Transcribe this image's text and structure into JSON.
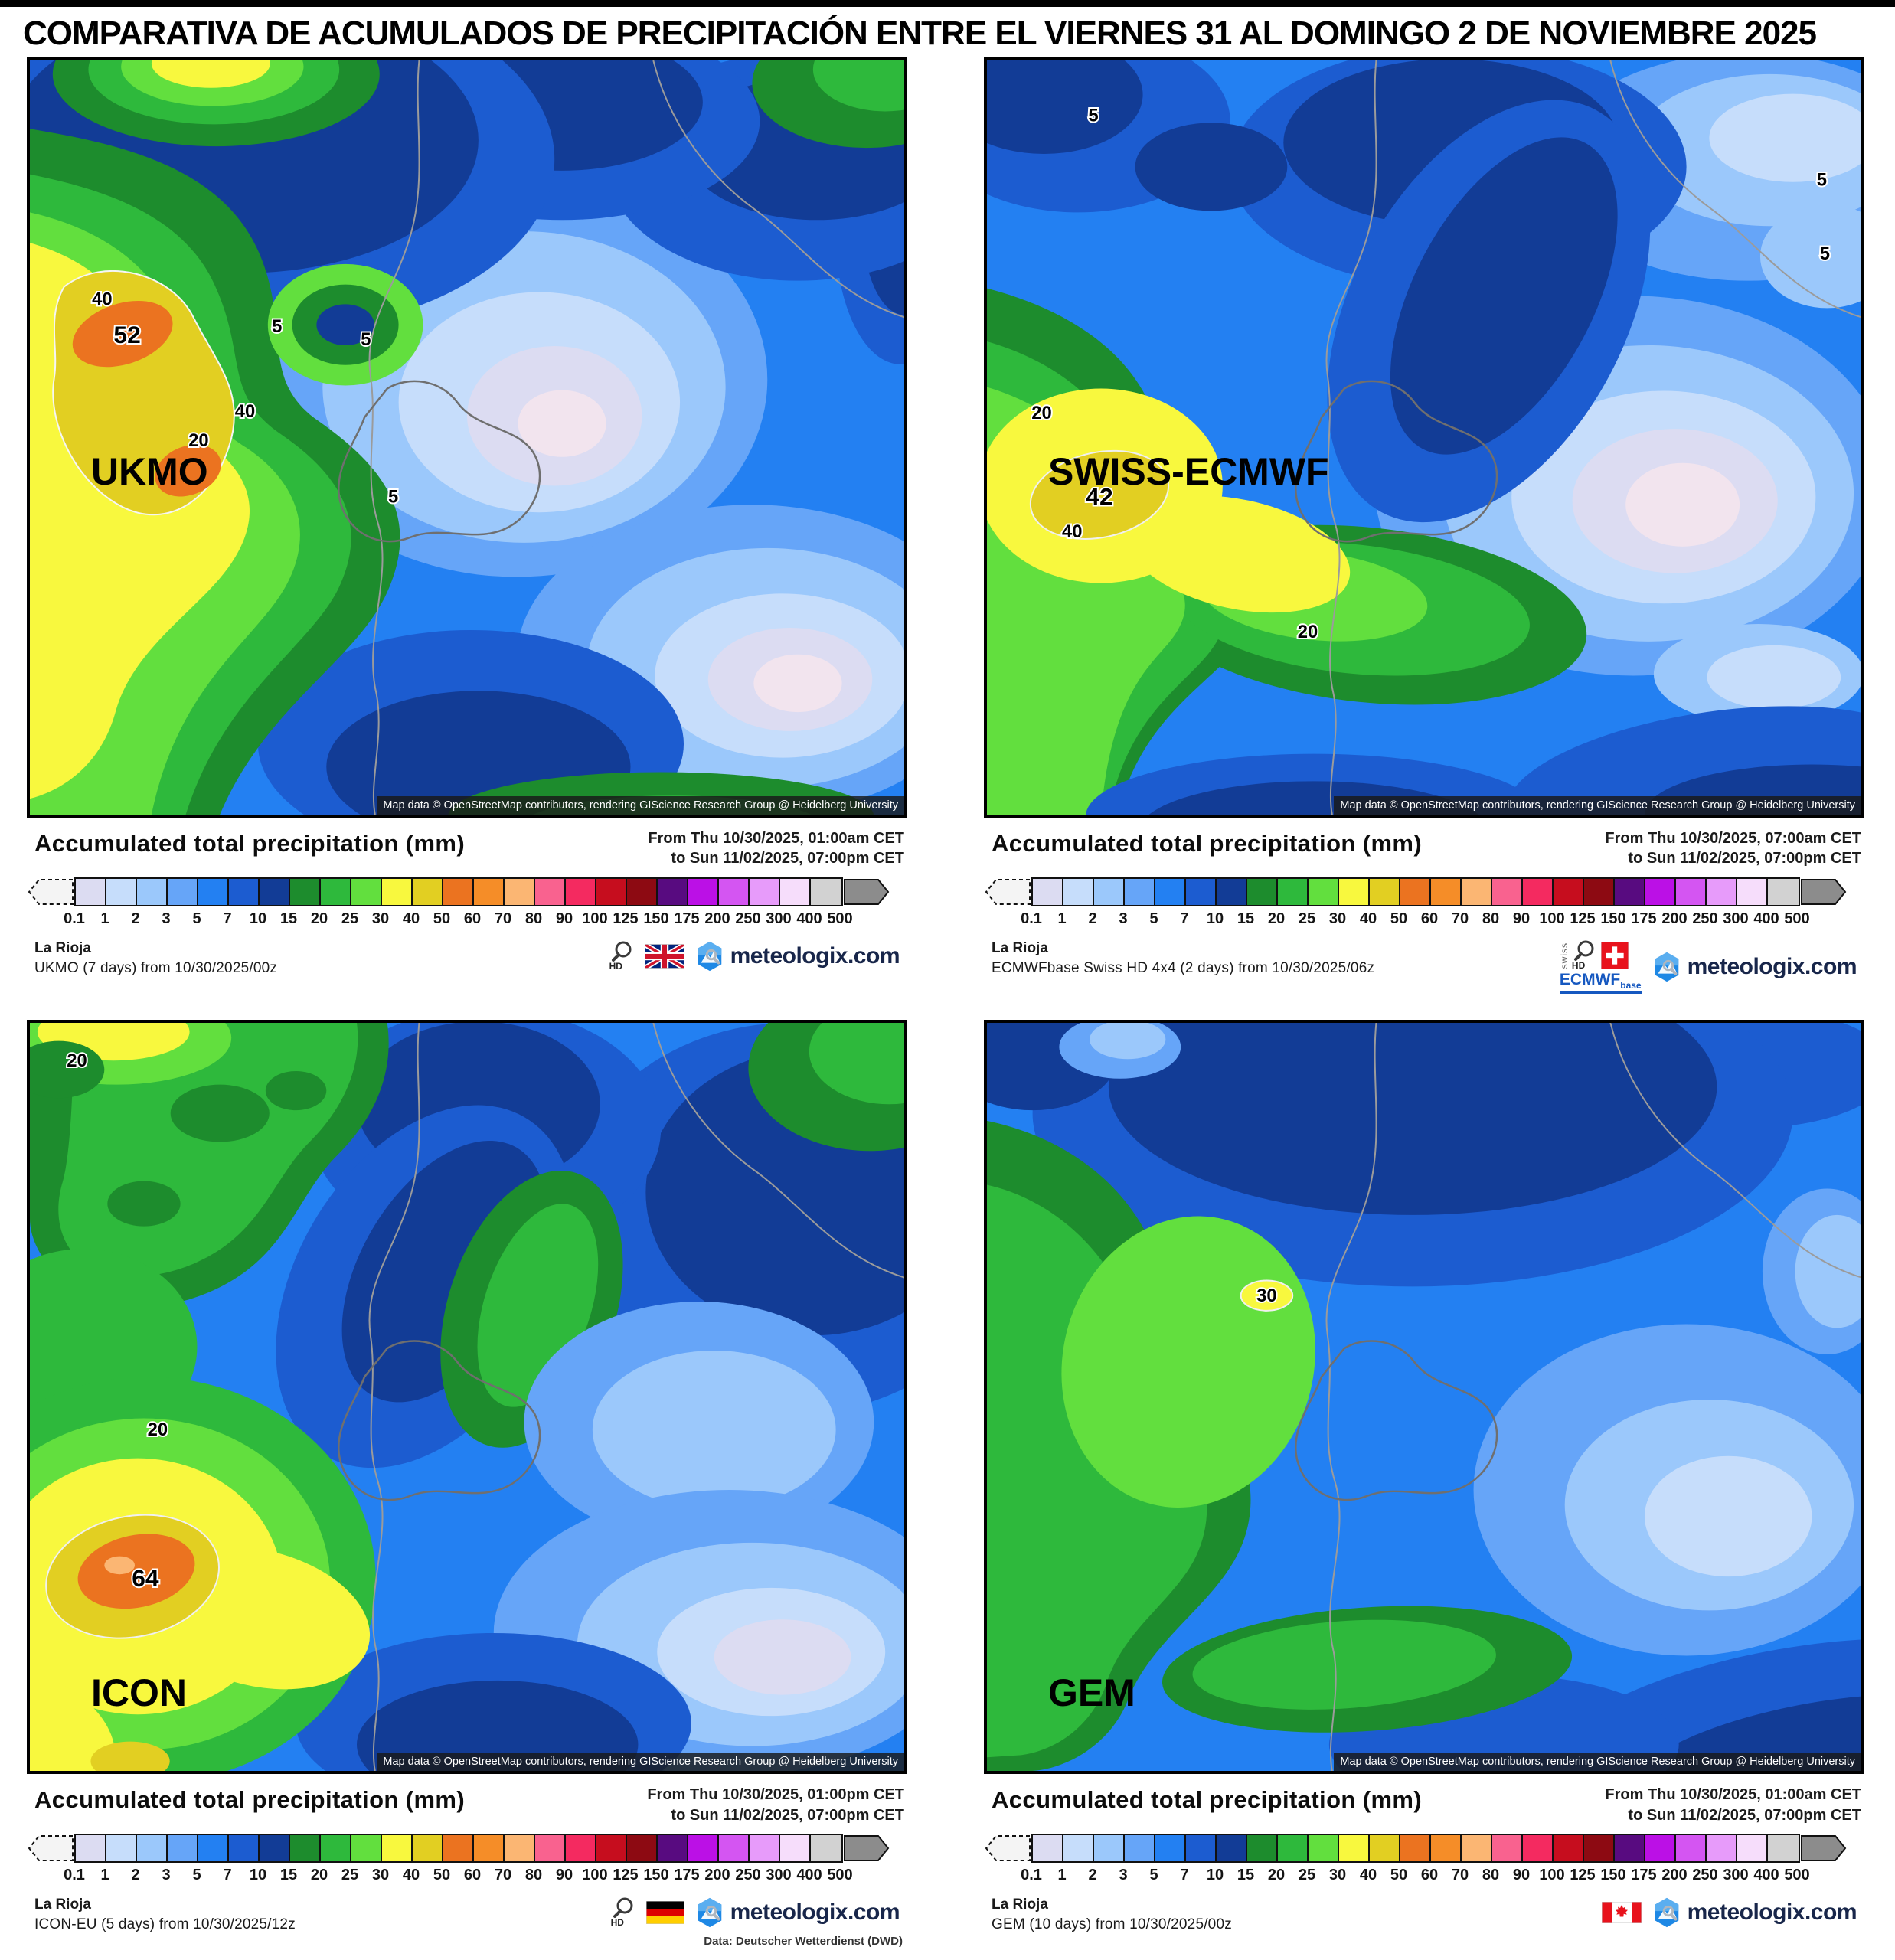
{
  "title": "COMPARATIVA DE ACUMULADOS DE PRECIPITACIÓN ENTRE EL VIERNES 31 AL DOMINGO 2 DE NOVIEMBRE 2025",
  "attribution": "Map data © OpenStreetMap contributors, rendering GIScience Research Group @ Heidelberg University",
  "location": "La Rioja",
  "brand": "meteologix.com",
  "hd": "HD",
  "legend": {
    "heading": "Accumulated total precipitation (mm)",
    "ticks": [
      "0.1",
      "1",
      "2",
      "3",
      "5",
      "7",
      "10",
      "15",
      "20",
      "25",
      "30",
      "40",
      "50",
      "60",
      "70",
      "80",
      "90",
      "100",
      "125",
      "150",
      "175",
      "200",
      "250",
      "300",
      "400",
      "500"
    ],
    "colors": [
      "#dcdcf2",
      "#c6ddfb",
      "#9bc8fb",
      "#66a5f8",
      "#2380f2",
      "#1c5cd0",
      "#123c96",
      "#1d8c2d",
      "#2eb93c",
      "#62df3e",
      "#f8f83e",
      "#e2cf22",
      "#eb7320",
      "#f58d28",
      "#fbb673",
      "#f9628f",
      "#f42a60",
      "#c60d1e",
      "#8d0a12",
      "#580b80",
      "#bb10e6",
      "#d455f2",
      "#e79bfa",
      "#f6ddfb",
      "#d2d2d2"
    ],
    "under_color": "#f2e4ee"
  },
  "panels": [
    {
      "model": "UKMO",
      "date_line1": "From Thu 10/30/2025, 01:00am CET",
      "date_line2": "to Sun 11/02/2025, 07:00pm CET",
      "source_line": "UKMO (7 days) from 10/30/2025/00z",
      "flag": "united-kingdom",
      "map_labels": {
        "l1": "40",
        "l2": "52",
        "l3": "40",
        "l4": "20",
        "l5": "5",
        "l6": "5",
        "l7": "5"
      }
    },
    {
      "model": "SWISS-ECMWF",
      "date_line1": "From Thu 10/30/2025, 07:00am CET",
      "date_line2": "to Sun 11/02/2025, 07:00pm CET",
      "source_line": "ECMWFbase Swiss HD 4x4 (2 days) from 10/30/2025/06z",
      "flag": "switzerland",
      "swiss_mark": {
        "vertical": "swiss",
        "ecmwf": "ECMWF",
        "base": "base"
      },
      "map_labels": {
        "l1": "5",
        "l2": "5",
        "l3": "5",
        "l4": "42",
        "l5": "40",
        "l6": "20",
        "l7": "20"
      }
    },
    {
      "model": "ICON",
      "date_line1": "From Thu 10/30/2025, 01:00pm CET",
      "date_line2": "to Sun 11/02/2025, 07:00pm CET",
      "source_line": "ICON-EU (5 days) from 10/30/2025/12z",
      "flag": "germany",
      "data_note": "Data: Deutscher Wetterdienst (DWD)",
      "map_labels": {
        "l1": "20",
        "l2": "20",
        "l3": "64"
      }
    },
    {
      "model": "GEM",
      "date_line1": "From Thu 10/30/2025, 01:00am CET",
      "date_line2": "to Sun 11/02/2025, 07:00pm CET",
      "source_line": "GEM (10 days) from 10/30/2025/00z",
      "flag": "canada",
      "map_labels": {
        "l1": "30"
      }
    }
  ]
}
